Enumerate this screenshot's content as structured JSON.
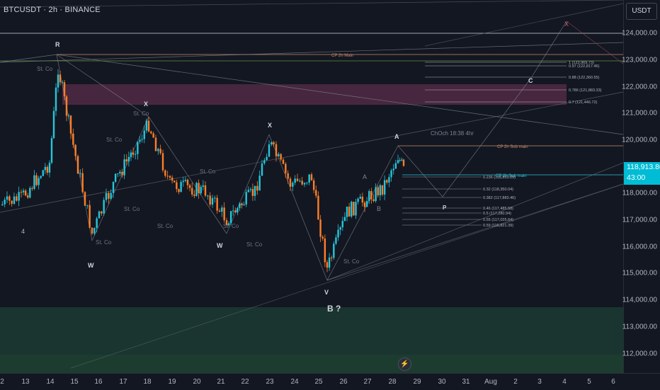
{
  "header": {
    "title": "BTCUSDT · 2h · BINANCE"
  },
  "price_axis": {
    "currency_button": "USDT",
    "labels": [
      "124,000.00",
      "123,000.00",
      "122,000.00",
      "121,000.00",
      "120,000.00",
      "118,000.00",
      "117,000.00",
      "116,000.00",
      "115,000.00",
      "114,000.00",
      "113,000.00",
      "112,000.00"
    ],
    "current_price": "118,913.86",
    "countdown": "43:00"
  },
  "time_axis": {
    "labels": [
      "2",
      "13",
      "14",
      "15",
      "16",
      "17",
      "18",
      "19",
      "20",
      "21",
      "22",
      "23",
      "24",
      "25",
      "26",
      "27",
      "28",
      "29",
      "30",
      "31",
      "Aug",
      "2",
      "3",
      "4",
      "5",
      "6"
    ]
  },
  "annotations": {
    "wave_labels": [
      "4",
      "W",
      "W",
      "X",
      "X",
      "A",
      "A",
      "B",
      "C",
      "X",
      "B ?"
    ],
    "st_co": [
      "St. Co",
      "St. Co",
      "St. Co",
      "St. Co",
      "St. Co",
      "St. Co",
      "St. Co",
      "St. Co",
      "St. Co"
    ],
    "cp_main": "CP 2h Main",
    "cp_sub": "CP 2h Sub main",
    "choch": "ChOch 18:38 4hr",
    "fib_upper": [
      "1 (123,969.73)",
      "0.97 (122,817.46)",
      "0.88 (122,360.55)",
      "0.786 (121,883.33)",
      "0.7 (121,446.72)"
    ],
    "fib_lower": [
      "0.236 (118,853.09)",
      "0.32 (118,350.04)",
      "0.382 (117,883.46)",
      "0.46 (117,485.58)",
      "0.5 (117,280.94)",
      "0.55 (117,025.64)",
      "0.59 (116,821.39)"
    ]
  },
  "colors": {
    "background": "#131722",
    "up": "#26c6da",
    "down": "#ff7f27",
    "accent": "#00bcd4",
    "zone_pink": "#5a2d4a",
    "zone_green": "#1c3a33"
  },
  "icons": {
    "alert": "lightning-bolt-icon"
  }
}
